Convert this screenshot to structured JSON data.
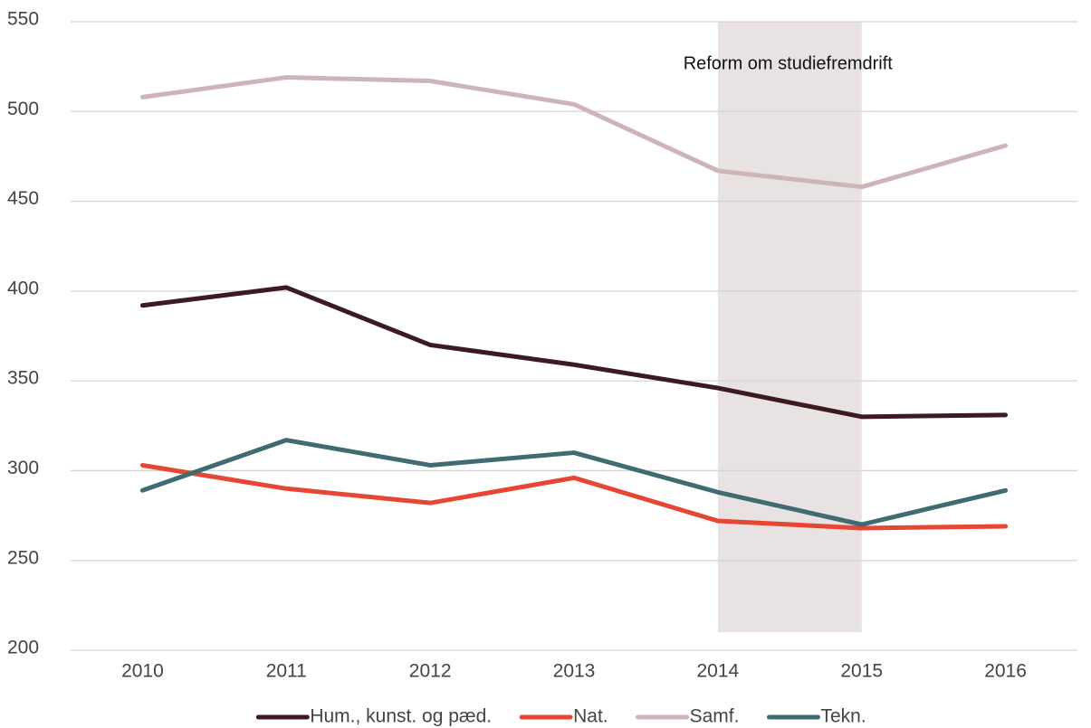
{
  "chart_data": {
    "type": "line",
    "categories": [
      "2010",
      "2011",
      "2012",
      "2013",
      "2014",
      "2015",
      "2016"
    ],
    "series": [
      {
        "name": "Hum., kunst. og pæd.",
        "color": "#3d1a22",
        "values": [
          392,
          402,
          370,
          359,
          346,
          330,
          331
        ]
      },
      {
        "name": "Nat.",
        "color": "#e64633",
        "values": [
          303,
          290,
          282,
          296,
          272,
          268,
          269
        ]
      },
      {
        "name": "Samf.",
        "color": "#cdb5b7",
        "values": [
          508,
          519,
          517,
          504,
          467,
          458,
          481
        ]
      },
      {
        "name": "Tekn.",
        "color": "#3f6b72",
        "values": [
          289,
          317,
          303,
          310,
          288,
          270,
          289
        ]
      }
    ],
    "ylim": [
      200,
      550
    ],
    "yticks": [
      200,
      250,
      300,
      350,
      400,
      450,
      500,
      550
    ],
    "grid": true,
    "legend": "bottom",
    "span": {
      "categories": [
        "2014",
        "2015"
      ],
      "ylim": [
        210,
        550
      ],
      "color": "#e8e2e3"
    },
    "annotation": "Reform om studiefremdrift"
  }
}
